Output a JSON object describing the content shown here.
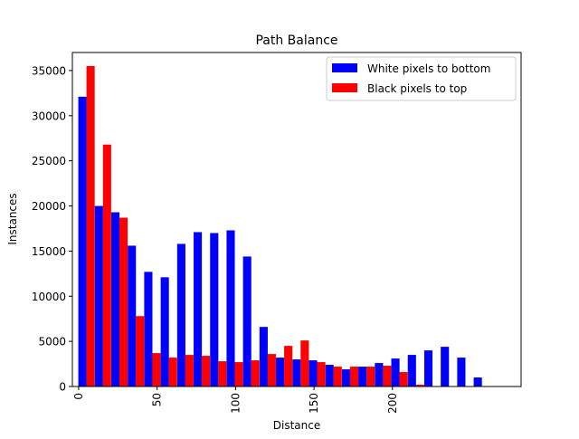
{
  "chart_data": {
    "type": "bar",
    "title": "Path Balance",
    "xlabel": "Distance",
    "ylabel": "Instances",
    "grid": false,
    "legend_placement": "top-right",
    "xlim": [
      -4,
      282
    ],
    "ylim": [
      0,
      37000
    ],
    "x_ticks": [
      0,
      50,
      100,
      150,
      200
    ],
    "y_ticks": [
      0,
      5000,
      10000,
      15000,
      20000,
      25000,
      30000,
      35000
    ],
    "bar_group_step": 10.5,
    "x": [
      5,
      15.5,
      26,
      36.5,
      47,
      57.5,
      68,
      78.5,
      89,
      99.5,
      110,
      120.5,
      131,
      141.5,
      152,
      162.5,
      173,
      183.5,
      194,
      204.5,
      215,
      225.5,
      236,
      246.5,
      257
    ],
    "series": [
      {
        "name": "White pixels to bottom",
        "color": "#0000ff",
        "offset": -2.6,
        "values": [
          32100,
          20000,
          19300,
          15600,
          12700,
          12100,
          15800,
          17100,
          17000,
          17300,
          14400,
          6600,
          3200,
          3000,
          2900,
          2400,
          1900,
          2200,
          2600,
          3100,
          3500,
          4000,
          4400,
          3200,
          1000
        ]
      },
      {
        "name": "Black pixels to top",
        "color": "#ff0000",
        "offset": 2.6,
        "values": [
          35500,
          26800,
          18700,
          7800,
          3700,
          3200,
          3500,
          3400,
          2800,
          2700,
          2900,
          3600,
          4500,
          5100,
          2700,
          2200,
          2200,
          2200,
          2300,
          1600,
          200,
          0,
          0,
          0,
          0
        ]
      }
    ]
  }
}
